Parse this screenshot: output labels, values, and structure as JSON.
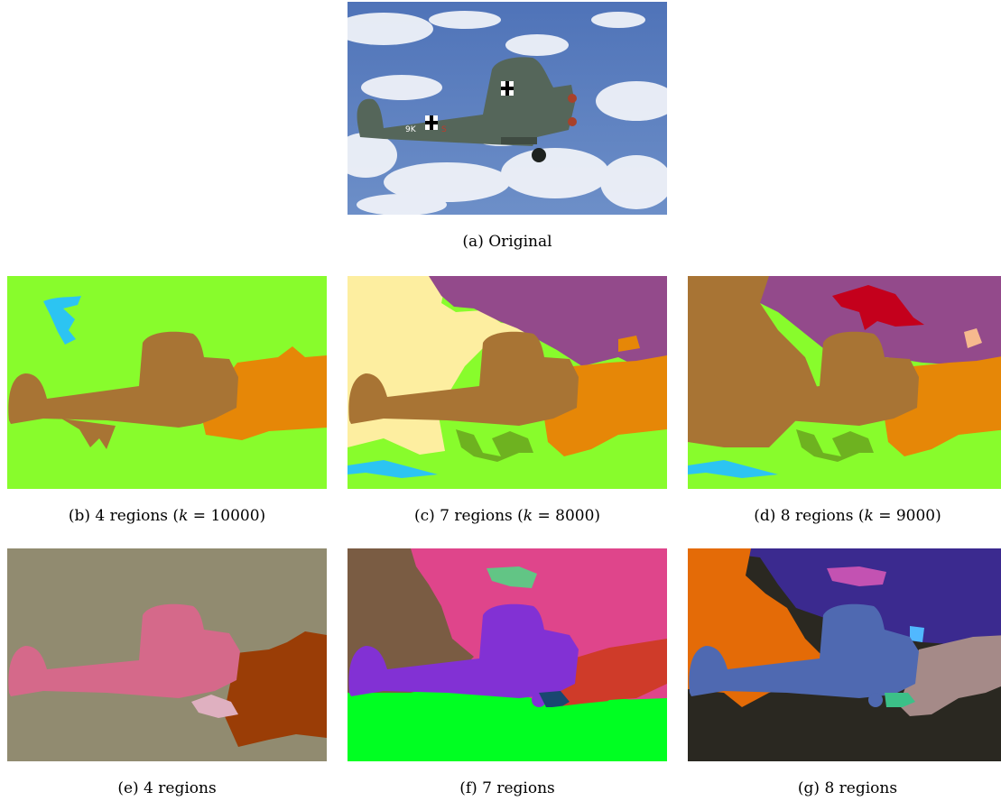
{
  "figure": {
    "panels": [
      {
        "id": "a",
        "caption": "(a) Original"
      },
      {
        "id": "b",
        "caption_pre": "(b) 4 regions (",
        "caption_var": "k",
        "caption_post": " = 10000)"
      },
      {
        "id": "c",
        "caption_pre": "(c) 7 regions (",
        "caption_var": "k",
        "caption_post": " = 8000)"
      },
      {
        "id": "d",
        "caption_pre": "(d) 8 regions (",
        "caption_var": "k",
        "caption_post": " = 9000)"
      },
      {
        "id": "e",
        "caption": "(e) 4 regions"
      },
      {
        "id": "f",
        "caption": "(f) 7 regions"
      },
      {
        "id": "g",
        "caption": "(g) 8 regions"
      }
    ],
    "colors": {
      "b": {
        "bg": "#88fc2c",
        "plane": "#a87434",
        "right": "#e68707",
        "spot": "#2cc4f2"
      },
      "c": {
        "bg": "#88fc2c",
        "plane": "#a87434",
        "cream": "#fdeea0",
        "purple": "#934a8b",
        "right": "#e68707",
        "blue": "#2cc4f2",
        "dark": "#6aa51f"
      },
      "d": {
        "bg": "#88fc2c",
        "plane": "#a87434",
        "purple": "#934a8b",
        "red": "#c4001c",
        "right": "#e68707",
        "blue": "#2cc4f2",
        "peach": "#f6b98e",
        "dark": "#6aa51f"
      },
      "e": {
        "bg": "#918b70",
        "plane": "#d5698a",
        "right": "#9a3d06",
        "pink": "#dfb0c0"
      },
      "f": {
        "bg": "#00ff22",
        "plane": "#8231d4",
        "brown": "#7a5c43",
        "magenta": "#df458b",
        "red": "#cf3b29",
        "mint": "#62c585",
        "navy": "#194770"
      },
      "g": {
        "bg": "#2a2821",
        "plane": "#4f69b1",
        "orange": "#e46b07",
        "indigo": "#3b2a8f",
        "rose": "#a58a88",
        "pinkc": "#c352b2",
        "teal": "#3cc088",
        "sky": "#51b8ff"
      }
    }
  }
}
